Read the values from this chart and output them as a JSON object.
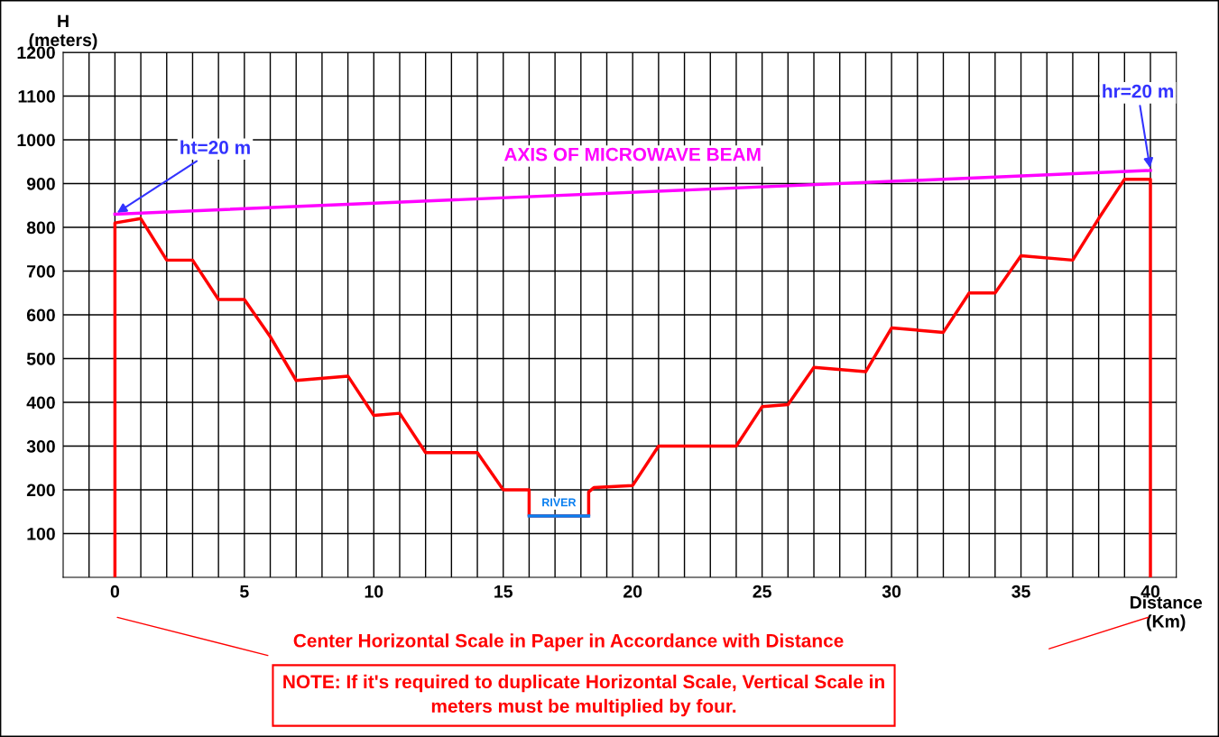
{
  "chart_data": {
    "type": "line",
    "xlabel": "Distance\n(Km)",
    "ylabel": "H\n(meters)",
    "xlim": [
      -2,
      41
    ],
    "ylim": [
      0,
      1200
    ],
    "xticks": [
      {
        "value": -1,
        "label": null
      },
      0,
      {
        "value": 1,
        "label": null
      },
      {
        "value": 2,
        "label": null
      },
      {
        "value": 3,
        "label": null
      },
      {
        "value": 4,
        "label": null
      },
      5,
      {
        "value": 6,
        "label": null
      },
      {
        "value": 7,
        "label": null
      },
      {
        "value": 8,
        "label": null
      },
      {
        "value": 9,
        "label": null
      },
      10,
      {
        "value": 11,
        "label": null
      },
      {
        "value": 12,
        "label": null
      },
      {
        "value": 13,
        "label": null
      },
      {
        "value": 14,
        "label": null
      },
      15,
      {
        "value": 16,
        "label": null
      },
      {
        "value": 17,
        "label": null
      },
      {
        "value": 18,
        "label": null
      },
      {
        "value": 19,
        "label": null
      },
      20,
      {
        "value": 21,
        "label": null
      },
      {
        "value": 22,
        "label": null
      },
      {
        "value": 23,
        "label": null
      },
      {
        "value": 24,
        "label": null
      },
      25,
      {
        "value": 26,
        "label": null
      },
      {
        "value": 27,
        "label": null
      },
      {
        "value": 28,
        "label": null
      },
      {
        "value": 29,
        "label": null
      },
      30,
      {
        "value": 31,
        "label": null
      },
      {
        "value": 32,
        "label": null
      },
      {
        "value": 33,
        "label": null
      },
      {
        "value": 34,
        "label": null
      },
      35,
      {
        "value": 36,
        "label": null
      },
      {
        "value": 37,
        "label": null
      },
      {
        "value": 38,
        "label": null
      },
      {
        "value": 39,
        "label": null
      },
      40
    ],
    "yticks": [
      100,
      200,
      300,
      400,
      500,
      600,
      700,
      800,
      900,
      1000,
      1100,
      1200
    ],
    "grid": true,
    "legend": false,
    "marker": "none",
    "line_style": "solid",
    "series": [
      {
        "color": "#ff0000",
        "x": [
          0,
          0,
          1,
          2,
          3,
          4,
          5,
          6,
          7,
          9,
          10,
          11,
          12,
          14,
          15,
          16,
          16,
          18.3,
          18.3,
          18.5,
          20,
          21,
          24,
          25,
          26,
          27,
          29,
          30,
          32,
          33,
          34,
          35,
          37,
          38,
          39,
          40,
          40
        ],
        "values": [
          0,
          810,
          820,
          725,
          725,
          635,
          635,
          550,
          450,
          460,
          370,
          375,
          285,
          285,
          200,
          200,
          140,
          140,
          195,
          205,
          210,
          300,
          300,
          390,
          395,
          480,
          470,
          570,
          560,
          650,
          650,
          735,
          725,
          820,
          910,
          910,
          0
        ]
      },
      {
        "name": "RIVER",
        "color": "#0a7ff0",
        "x": [
          16,
          18.3
        ],
        "values": [
          140,
          140
        ]
      },
      {
        "name": "AXIS OF MICROWAVE BEAM",
        "color": "#ff00ff",
        "x": [
          0,
          40
        ],
        "values": [
          830,
          930
        ]
      }
    ],
    "annotations": [
      {
        "text": "ht=20 m",
        "x": 0,
        "y": 830
      },
      {
        "text": "hr=20 m",
        "x": 40,
        "y": 930
      },
      "Center Horizontal Scale in Paper in Accordance with Distance",
      "NOTE: If it's required to duplicate Horizontal Scale, Vertical Scale in\nmeters must be multiplied by four."
    ]
  }
}
